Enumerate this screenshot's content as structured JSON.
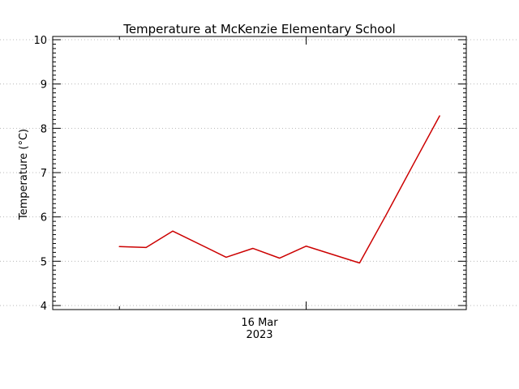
{
  "chart_data": {
    "type": "line",
    "title": "Temperature at McKenzie Elementary School",
    "xlabel": "",
    "ylabel": "Temperature (°C)",
    "ylim": [
      4,
      10
    ],
    "yticks": [
      4,
      5,
      6,
      7,
      8,
      9,
      10
    ],
    "x_tick_label": {
      "date": "2023-03-16",
      "line1": "16 Mar",
      "line2": "2023"
    },
    "grid": true,
    "line_color": "#cc0000",
    "series": [
      {
        "x": [
          "2023-03-15T17:00",
          "2023-03-15T18:00",
          "2023-03-15T19:00",
          "2023-03-15T21:00",
          "2023-03-15T22:00",
          "2023-03-15T23:00",
          "2023-03-16T00:00",
          "2023-03-16T02:00",
          "2023-03-16T03:00",
          "2023-03-16T04:00",
          "2023-03-16T05:00"
        ],
        "values": [
          5.33,
          5.31,
          5.68,
          5.09,
          5.29,
          5.07,
          5.34,
          4.96,
          6.05,
          7.17,
          8.28
        ]
      }
    ]
  }
}
